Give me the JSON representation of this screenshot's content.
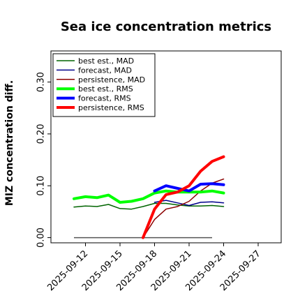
{
  "chart_data": {
    "type": "line",
    "title": "Sea ice concentration metrics",
    "xlabel": "",
    "ylabel": "MIZ concentration diff.",
    "xlim": [
      "2025-09-09",
      "2025-09-29"
    ],
    "ylim": [
      -0.01,
      0.36
    ],
    "yticks": [
      0.0,
      0.1,
      0.2,
      0.3
    ],
    "ytick_labels": [
      "0.00",
      "0.10",
      "0.20",
      "0.30"
    ],
    "xticks": [
      "2025-09-12",
      "2025-09-15",
      "2025-09-18",
      "2025-09-21",
      "2025-09-24",
      "2025-09-27"
    ],
    "xtick_labels": [
      "2025-09-12",
      "2025-09-15",
      "2025-09-18",
      "2025-09-21",
      "2025-09-24",
      "2025-09-27"
    ],
    "highlighted_xtick": "2025-09-18",
    "highlight_color": "#228b22",
    "grid": false,
    "legend_position": "top-left",
    "reference_line": {
      "y": 0.0,
      "x": [
        "2025-09-11",
        "2025-09-23"
      ],
      "color": "#555555"
    },
    "series": [
      {
        "name": "best est., MAD",
        "color": "#006400",
        "width": 1.5,
        "x": [
          "2025-09-11",
          "2025-09-12",
          "2025-09-13",
          "2025-09-14",
          "2025-09-15",
          "2025-09-16",
          "2025-09-17",
          "2025-09-18",
          "2025-09-19",
          "2025-09-20",
          "2025-09-21",
          "2025-09-22",
          "2025-09-23",
          "2025-09-24"
        ],
        "values": [
          0.059,
          0.061,
          0.06,
          0.064,
          0.056,
          0.055,
          0.06,
          0.066,
          0.066,
          0.063,
          0.061,
          0.061,
          0.062,
          0.06
        ]
      },
      {
        "name": "forecast,  MAD",
        "color": "#00008b",
        "width": 1.5,
        "x": [
          "2025-09-18",
          "2025-09-19",
          "2025-09-20",
          "2025-09-21",
          "2025-09-22",
          "2025-09-23",
          "2025-09-24"
        ],
        "values": [
          0.068,
          0.072,
          0.067,
          0.062,
          0.068,
          0.069,
          0.067
        ]
      },
      {
        "name": "persistence, MAD",
        "color": "#8b0000",
        "width": 1.5,
        "x": [
          "2025-09-17",
          "2025-09-18",
          "2025-09-19",
          "2025-09-20",
          "2025-09-21",
          "2025-09-22",
          "2025-09-23",
          "2025-09-24"
        ],
        "values": [
          0.0,
          0.035,
          0.055,
          0.06,
          0.07,
          0.09,
          0.105,
          0.113
        ]
      },
      {
        "name": "best est., RMS",
        "color": "#00ff00",
        "width": 4,
        "x": [
          "2025-09-11",
          "2025-09-12",
          "2025-09-13",
          "2025-09-14",
          "2025-09-15",
          "2025-09-16",
          "2025-09-17",
          "2025-09-18",
          "2025-09-19",
          "2025-09-20",
          "2025-09-21",
          "2025-09-22",
          "2025-09-23",
          "2025-09-24"
        ],
        "values": [
          0.075,
          0.079,
          0.077,
          0.082,
          0.068,
          0.07,
          0.075,
          0.086,
          0.09,
          0.088,
          0.088,
          0.088,
          0.09,
          0.086
        ]
      },
      {
        "name": "forecast,  RMS",
        "color": "#0000ff",
        "width": 4,
        "x": [
          "2025-09-18",
          "2025-09-19",
          "2025-09-20",
          "2025-09-21",
          "2025-09-22",
          "2025-09-23",
          "2025-09-24"
        ],
        "values": [
          0.09,
          0.1,
          0.095,
          0.09,
          0.103,
          0.104,
          0.102
        ]
      },
      {
        "name": "persistence, RMS",
        "color": "#ff0000",
        "width": 4,
        "x": [
          "2025-09-17",
          "2025-09-18",
          "2025-09-19",
          "2025-09-20",
          "2025-09-21",
          "2025-09-22",
          "2025-09-23",
          "2025-09-24"
        ],
        "values": [
          0.0,
          0.055,
          0.083,
          0.088,
          0.1,
          0.128,
          0.147,
          0.156
        ]
      }
    ]
  }
}
